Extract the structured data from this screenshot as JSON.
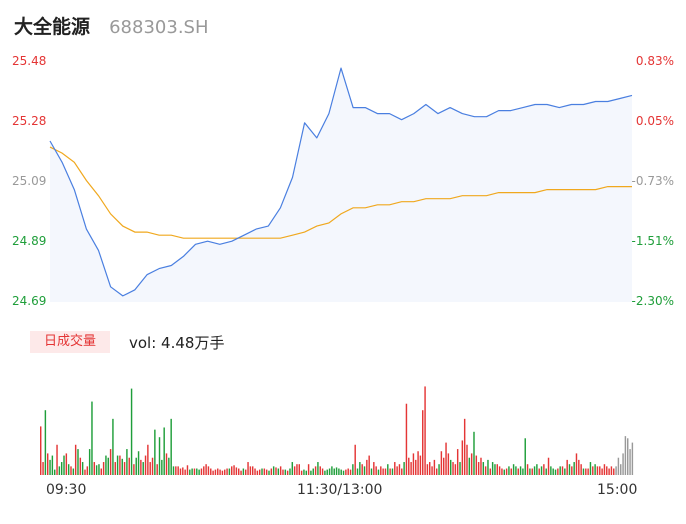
{
  "header": {
    "name": "大全能源",
    "code": "688303.SH"
  },
  "volume_panel": {
    "tag": "日成交量",
    "vol_label": "vol: 4.48万手"
  },
  "colors": {
    "price_line": "#4a7fe0",
    "price_fill": "#f4f7fd",
    "avg_line": "#f0a81e",
    "up": "#e43535",
    "down": "#1f9e3a",
    "flat": "#999999"
  },
  "chart_data": [
    {
      "type": "line",
      "title": "",
      "ylim": [
        24.69,
        25.48
      ],
      "y_ticks_left": [
        "25.48",
        "25.28",
        "25.09",
        "24.89",
        "24.69"
      ],
      "y_ticks_right": [
        "0.83%",
        "0.05%",
        "-0.73%",
        "-1.51%",
        "-2.30%"
      ],
      "x_ticks": [
        "09:30",
        "11:30/13:00",
        "15:00"
      ],
      "grid": false,
      "x_minutes": [
        0,
        5,
        10,
        15,
        20,
        25,
        30,
        35,
        40,
        45,
        50,
        55,
        60,
        65,
        70,
        75,
        80,
        85,
        90,
        95,
        100,
        105,
        110,
        115,
        120,
        125,
        130,
        135,
        140,
        145,
        150,
        155,
        160,
        165,
        170,
        175,
        180,
        185,
        190,
        195,
        200,
        205,
        210,
        215,
        220,
        225,
        230,
        235,
        240
      ],
      "series": [
        {
          "values": [
            25.22,
            25.15,
            25.06,
            24.93,
            24.86,
            24.74,
            24.71,
            24.73,
            24.78,
            24.8,
            24.81,
            24.84,
            24.88,
            24.89,
            24.88,
            24.89,
            24.91,
            24.93,
            24.94,
            25.0,
            25.1,
            25.28,
            25.23,
            25.31,
            25.46,
            25.33,
            25.33,
            25.31,
            25.31,
            25.29,
            25.31,
            25.34,
            25.31,
            25.33,
            25.31,
            25.3,
            25.3,
            25.32,
            25.32,
            25.33,
            25.34,
            25.34,
            25.33,
            25.34,
            25.34,
            25.35,
            25.35,
            25.36,
            25.37
          ]
        },
        {
          "values": [
            25.2,
            25.18,
            25.15,
            25.09,
            25.04,
            24.98,
            24.94,
            24.92,
            24.92,
            24.91,
            24.91,
            24.9,
            24.9,
            24.9,
            24.9,
            24.9,
            24.9,
            24.9,
            24.9,
            24.9,
            24.91,
            24.92,
            24.94,
            24.95,
            24.98,
            25.0,
            25.0,
            25.01,
            25.01,
            25.02,
            25.02,
            25.03,
            25.03,
            25.03,
            25.04,
            25.04,
            25.04,
            25.05,
            25.05,
            25.05,
            25.05,
            25.06,
            25.06,
            25.06,
            25.06,
            25.06,
            25.07,
            25.07,
            25.07
          ]
        }
      ]
    },
    {
      "type": "bar",
      "title": "",
      "ylim": [
        0,
        100
      ],
      "x_ticks": [
        "09:30",
        "11:30/13:00",
        "15:00"
      ],
      "grid": false,
      "values": [
        45,
        12,
        60,
        20,
        14,
        18,
        5,
        28,
        8,
        12,
        18,
        20,
        10,
        8,
        6,
        28,
        24,
        16,
        12,
        5,
        8,
        24,
        68,
        12,
        9,
        10,
        6,
        12,
        18,
        16,
        24,
        52,
        12,
        18,
        18,
        15,
        12,
        24,
        16,
        80,
        10,
        16,
        22,
        14,
        12,
        18,
        28,
        12,
        16,
        42,
        10,
        35,
        14,
        44,
        20,
        16,
        52,
        8,
        8,
        8,
        6,
        7,
        5,
        9,
        5,
        6,
        6,
        6,
        5,
        6,
        8,
        10,
        8,
        6,
        4,
        5,
        6,
        5,
        4,
        5,
        6,
        6,
        8,
        9,
        7,
        6,
        4,
        6,
        5,
        12,
        8,
        8,
        6,
        4,
        5,
        6,
        6,
        5,
        4,
        6,
        8,
        7,
        6,
        8,
        5,
        5,
        4,
        6,
        12,
        8,
        10,
        10,
        4,
        5,
        4,
        10,
        4,
        6,
        8,
        12,
        8,
        6,
        4,
        5,
        6,
        8,
        6,
        7,
        6,
        5,
        4,
        5,
        6,
        5,
        10,
        28,
        6,
        12,
        10,
        8,
        14,
        18,
        6,
        12,
        8,
        5,
        8,
        6,
        6,
        10,
        6,
        6,
        12,
        8,
        10,
        6,
        12,
        66,
        16,
        12,
        20,
        14,
        22,
        18,
        60,
        82,
        10,
        12,
        8,
        14,
        6,
        10,
        22,
        16,
        30,
        20,
        14,
        12,
        10,
        24,
        12,
        32,
        52,
        28,
        16,
        20,
        40,
        18,
        12,
        16,
        12,
        8,
        14,
        6,
        12,
        10,
        10,
        8,
        6,
        5,
        6,
        8,
        6,
        10,
        8,
        6,
        8,
        6,
        34,
        10,
        6,
        6,
        8,
        10,
        6,
        8,
        10,
        6,
        16,
        8,
        6,
        5,
        6,
        8,
        8,
        6,
        14,
        10,
        8,
        12,
        20,
        14,
        10,
        6,
        6,
        6,
        12,
        8,
        10,
        8,
        8,
        6,
        10,
        8,
        6,
        8,
        6,
        8,
        16,
        10,
        20,
        36,
        34,
        24,
        30
      ],
      "directions": [
        "up",
        "up",
        "down",
        "up",
        "down",
        "down",
        "down",
        "up",
        "down",
        "down",
        "down",
        "up",
        "down",
        "up",
        "down",
        "up",
        "down",
        "up",
        "down",
        "up",
        "up",
        "down",
        "down",
        "up",
        "down",
        "down",
        "up",
        "up",
        "down",
        "down",
        "up",
        "down",
        "up",
        "down",
        "up",
        "down",
        "up",
        "down",
        "up",
        "down",
        "up",
        "down",
        "down",
        "up",
        "down",
        "up",
        "up",
        "up",
        "up",
        "down",
        "up",
        "down",
        "down",
        "down",
        "up",
        "down",
        "down",
        "down",
        "up",
        "up",
        "up",
        "up",
        "up",
        "up",
        "down",
        "down",
        "up",
        "down",
        "down",
        "up",
        "up",
        "up",
        "up",
        "up",
        "up",
        "up",
        "up",
        "up",
        "up",
        "up",
        "up",
        "down",
        "up",
        "up",
        "up",
        "up",
        "up",
        "down",
        "up",
        "up",
        "up",
        "up",
        "up",
        "up",
        "up",
        "down",
        "up",
        "up",
        "down",
        "up",
        "down",
        "up",
        "down",
        "up",
        "up",
        "down",
        "up",
        "down",
        "down",
        "up",
        "up",
        "up",
        "up",
        "down",
        "down",
        "up",
        "down",
        "down",
        "up",
        "down",
        "up",
        "up",
        "down",
        "down",
        "down",
        "down",
        "down",
        "down",
        "down",
        "down",
        "down",
        "up",
        "up",
        "up",
        "down",
        "up",
        "down",
        "down",
        "up",
        "down",
        "up",
        "up",
        "down",
        "up",
        "up",
        "down",
        "up",
        "up",
        "up",
        "down",
        "up",
        "down",
        "up",
        "up",
        "up",
        "up",
        "down",
        "up",
        "up",
        "up",
        "up",
        "up",
        "up",
        "up",
        "up",
        "up",
        "up",
        "up",
        "up",
        "up",
        "up",
        "down",
        "up",
        "up",
        "up",
        "up",
        "down",
        "up",
        "up",
        "up",
        "down",
        "up",
        "up",
        "up",
        "down",
        "up",
        "down",
        "up",
        "up",
        "up",
        "down",
        "up",
        "down",
        "up",
        "down",
        "down",
        "up",
        "up",
        "up",
        "down",
        "up",
        "down",
        "up",
        "down",
        "down",
        "up",
        "down",
        "down",
        "down",
        "up",
        "down",
        "up",
        "down",
        "down",
        "up",
        "down",
        "up",
        "down",
        "up",
        "down",
        "down",
        "down",
        "up",
        "down",
        "up",
        "down",
        "up",
        "down",
        "up",
        "down",
        "up",
        "up",
        "up",
        "down",
        "up",
        "up",
        "down",
        "up",
        "down",
        "up",
        "up",
        "up",
        "up",
        "up",
        "up",
        "up",
        "up",
        "flat"
      ]
    }
  ]
}
